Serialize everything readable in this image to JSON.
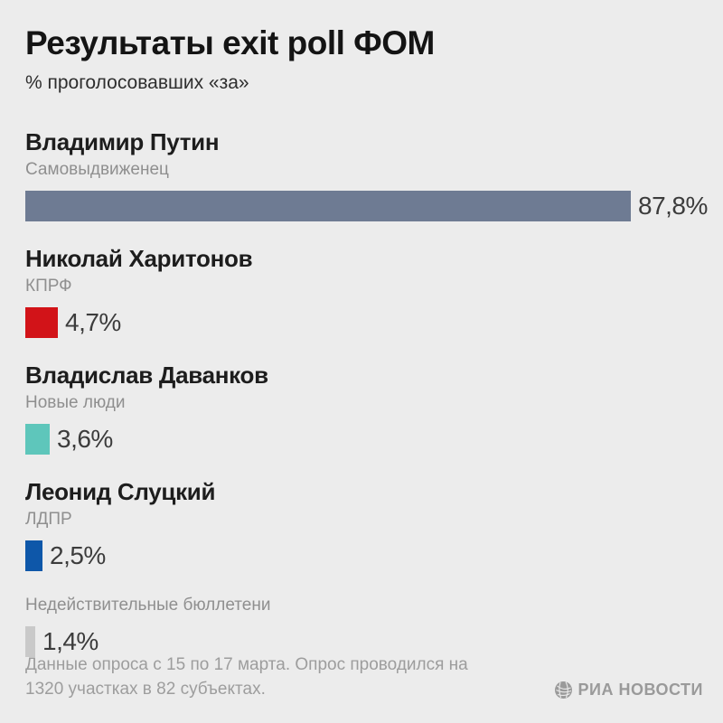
{
  "header": {
    "title": "Результаты exit poll ФОМ",
    "subtitle": "% проголосовавших «за»"
  },
  "chart_data": {
    "type": "bar",
    "orientation": "horizontal",
    "title": "Результаты exit poll ФОМ",
    "subtitle": "% проголосовавших «за»",
    "categories": [
      "Владимир Путин",
      "Николай Харитонов",
      "Владислав Даванков",
      "Леонид Слуцкий",
      "Недействительные бюллетени"
    ],
    "values": [
      87.8,
      4.7,
      3.6,
      2.5,
      1.4
    ],
    "xlim": [
      0,
      100
    ],
    "grid": false,
    "legend": false,
    "items": [
      {
        "name": "Владимир Путин",
        "party": "Самовыдвиженец",
        "value": 87.8,
        "value_label": "87,8%",
        "color": "#6e7b93"
      },
      {
        "name": "Николай Харитонов",
        "party": "КПРФ",
        "value": 4.7,
        "value_label": "4,7%",
        "color": "#d21318"
      },
      {
        "name": "Владислав Даванков",
        "party": "Новые люди",
        "value": 3.6,
        "value_label": "3,6%",
        "color": "#5ec6bb"
      },
      {
        "name": "Леонид Слуцкий",
        "party": "ЛДПР",
        "value": 2.5,
        "value_label": "2,5%",
        "color": "#0e57a9"
      },
      {
        "name": null,
        "party": "Недействительные бюллетени",
        "value": 1.4,
        "value_label": "1,4%",
        "color": "#c9c9c9"
      }
    ]
  },
  "footer": {
    "source_note": "Данные опроса с 15 по 17 марта. Опрос проводился на 1320 участках в 82 субъектах.",
    "brand": "РИА НОВОСТИ",
    "brand_icon": "ria-globe-icon",
    "brand_color": "#9a9a9a"
  },
  "colors": {
    "background": "#ececec",
    "title_text": "#141414",
    "name_text": "#1d1d1d",
    "party_text": "#8f8f8f",
    "value_text": "#3c3c3c",
    "footer_text": "#9d9d9d"
  }
}
